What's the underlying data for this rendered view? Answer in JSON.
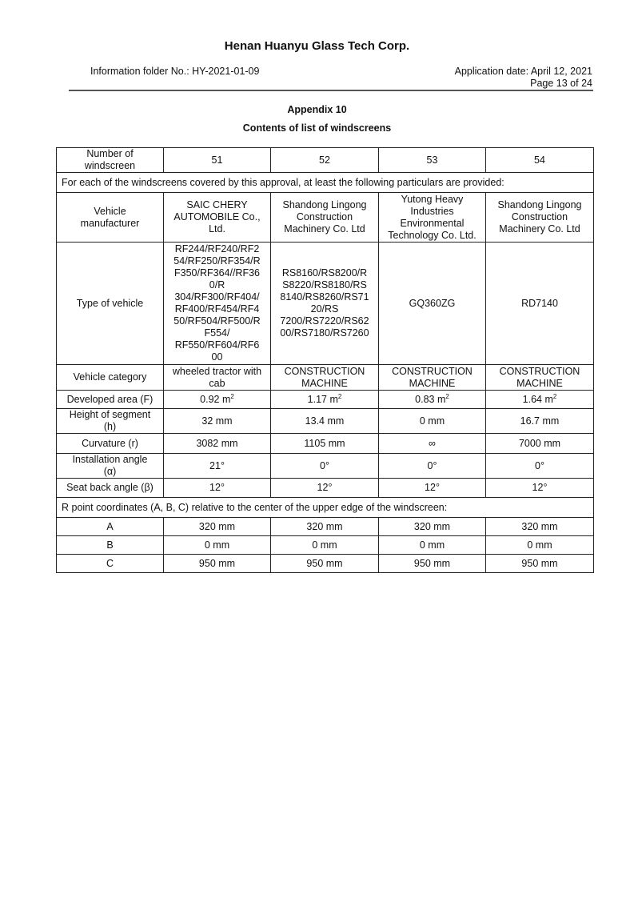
{
  "header": {
    "company": "Henan Huanyu Glass Tech Corp.",
    "folder": "Information folder No.: HY-2021-01-09",
    "date": "Application date: April 12, 2021",
    "page": "Page 13 of 24"
  },
  "heading": {
    "appendix": "Appendix 10",
    "subtitle": "Contents of list of windscreens"
  },
  "table": {
    "number_label": "Number of\nwindscreen",
    "numbers": [
      "51",
      "52",
      "53",
      "54"
    ],
    "intro": "For each of the windscreens covered by this approval, at least the following particulars are provided:",
    "rows": [
      {
        "label": "Vehicle\nmanufacturer",
        "values": [
          "SAIC CHERY\nAUTOMOBILE Co.,\nLtd.",
          "Shandong Lingong\nConstruction\nMachinery Co. Ltd",
          "Yutong Heavy\nIndustries\nEnvironmental\nTechnology Co. Ltd.",
          "Shandong Lingong\nConstruction\nMachinery Co. Ltd"
        ]
      },
      {
        "label": "Type of vehicle",
        "values": [
          "RF244/RF240/RF2\n54/RF250/RF354/R\nF350/RF364//RF36\n0/R\n304/RF300/RF404/\nRF400/RF454/RF4\n50/RF504/RF500/R\nF554/\nRF550/RF604/RF6\n00",
          "RS8160/RS8200/R\nS8220/RS8180/RS\n8140/RS8260/RS71\n20/RS\n7200/RS7220/RS62\n00/RS7180/RS7260",
          "GQ360ZG",
          "RD7140"
        ]
      },
      {
        "label": "Vehicle category",
        "values": [
          "wheeled tractor with\ncab",
          "CONSTRUCTION\nMACHINE",
          "CONSTRUCTION\nMACHINE",
          "CONSTRUCTION\nMACHINE"
        ]
      }
    ],
    "area": {
      "label": "Developed area (F)",
      "values": [
        "0.92 m",
        "1.17 m",
        "0.83 m",
        "1.64 m"
      ],
      "unit_sup": "2"
    },
    "rows2": [
      {
        "label": "Height of segment\n(h)",
        "values": [
          "32 mm",
          "13.4 mm",
          "0 mm",
          "16.7 mm"
        ]
      },
      {
        "label": "Curvature (r)",
        "values": [
          "3082 mm",
          "1105 mm",
          "∞",
          "7000 mm"
        ]
      },
      {
        "label": "Installation angle\n(α)",
        "values": [
          "21°",
          "0°",
          "0°",
          "0°"
        ]
      },
      {
        "label": "Seat back angle (β)",
        "values": [
          "12°",
          "12°",
          "12°",
          "12°"
        ]
      }
    ],
    "rpoint": "R point coordinates (A, B, C) relative to the center of the upper edge of the windscreen:",
    "coords": [
      {
        "label": "A",
        "values": [
          "320 mm",
          "320 mm",
          "320 mm",
          "320 mm"
        ]
      },
      {
        "label": "B",
        "values": [
          "0 mm",
          "0 mm",
          "0 mm",
          "0 mm"
        ]
      },
      {
        "label": "C",
        "values": [
          "950 mm",
          "950 mm",
          "950 mm",
          "950 mm"
        ]
      }
    ]
  }
}
